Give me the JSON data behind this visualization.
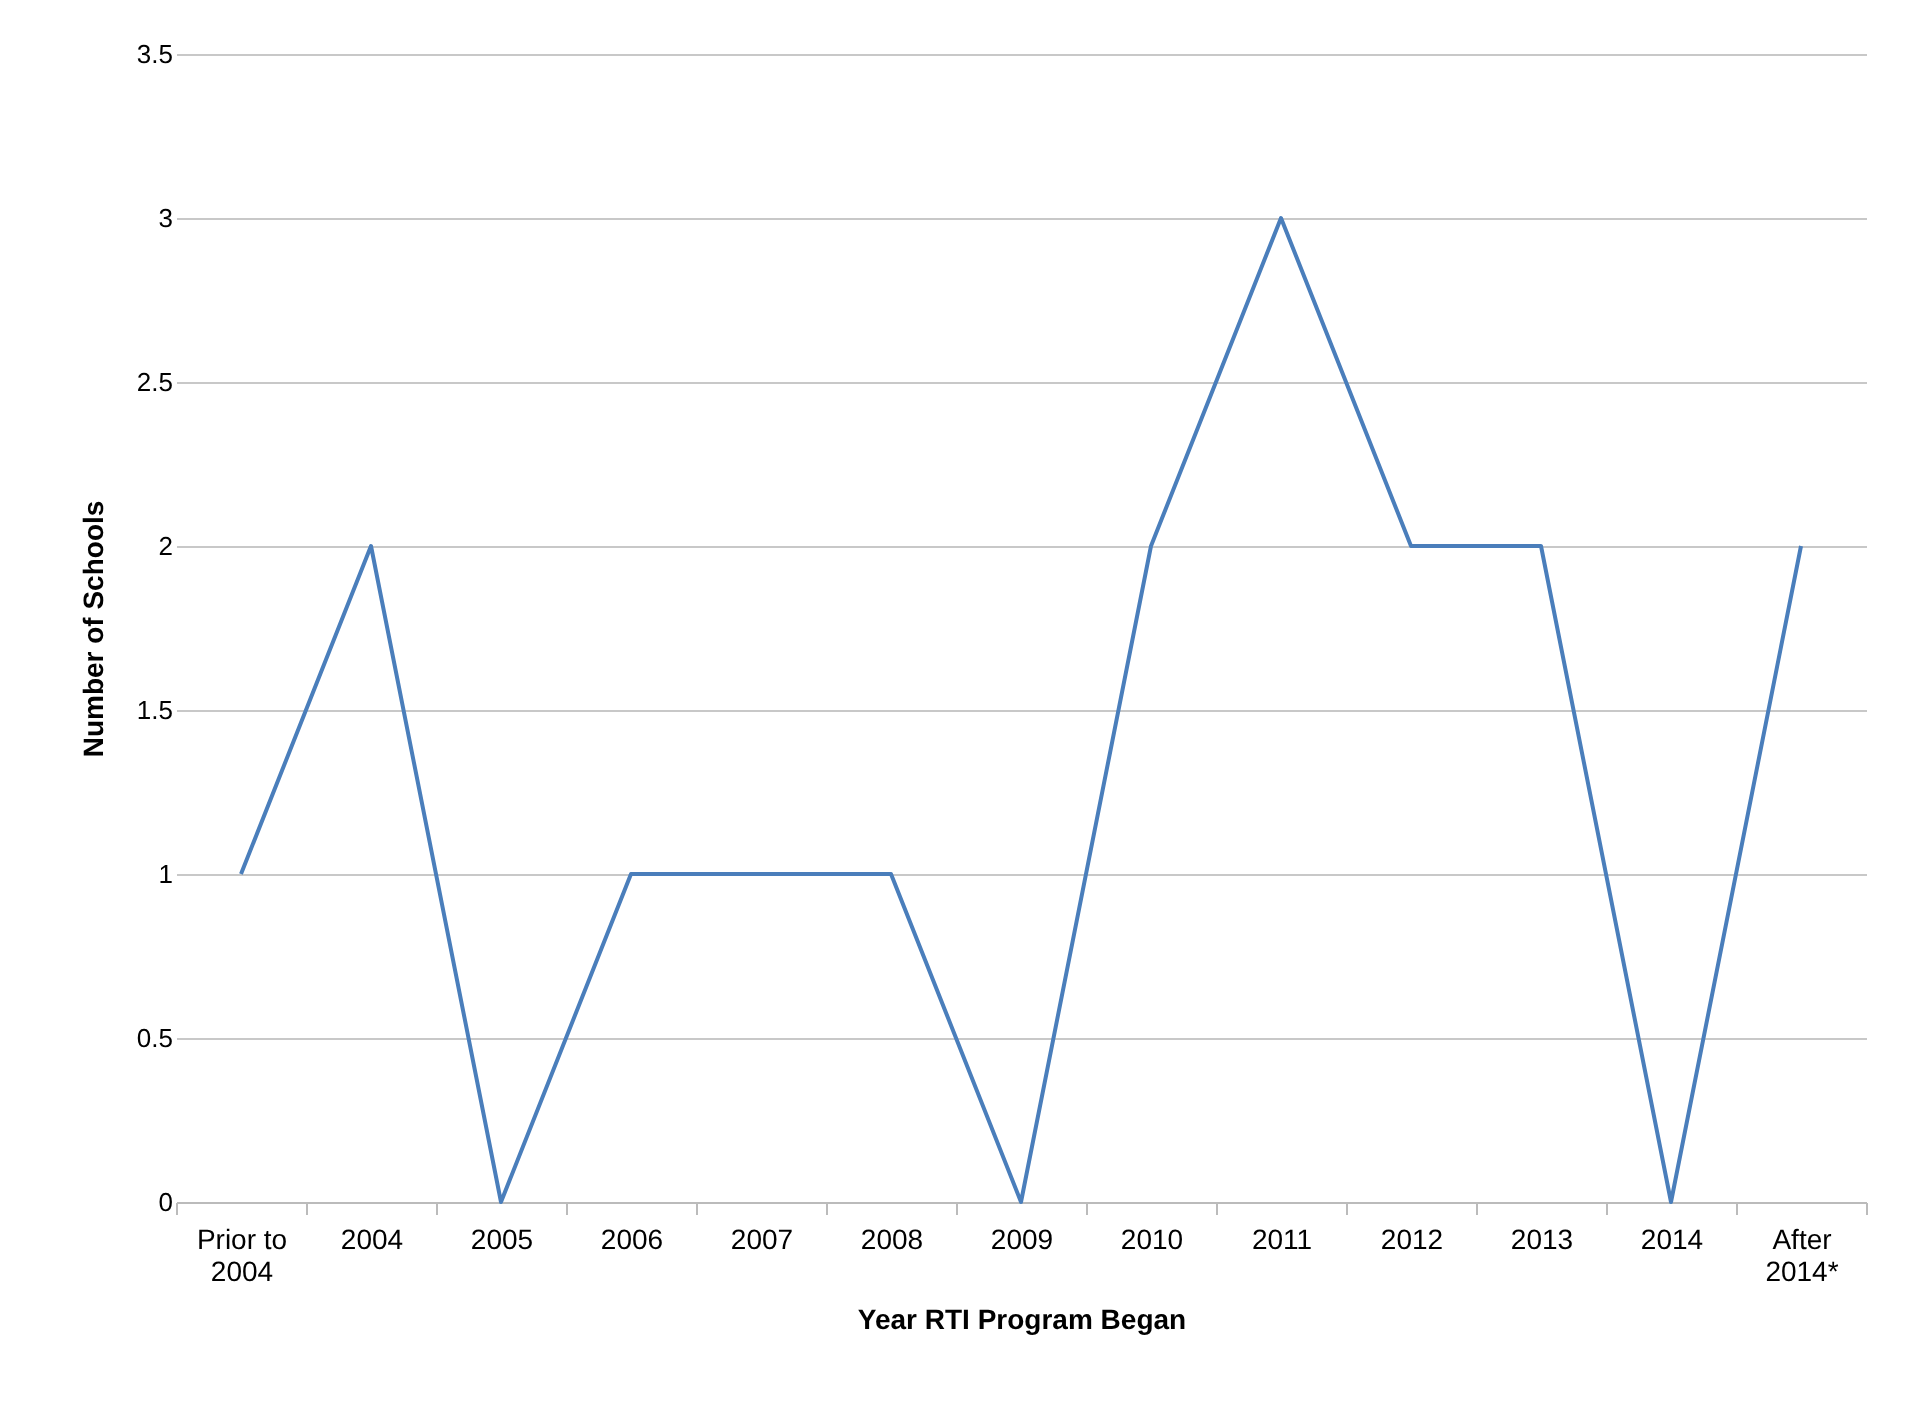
{
  "chart_data": {
    "type": "line",
    "xlabel": "Year RTI Program Began",
    "ylabel": "Number of Schools",
    "categories": [
      "Prior to 2004",
      "2004",
      "2005",
      "2006",
      "2007",
      "2008",
      "2009",
      "2010",
      "2011",
      "2012",
      "2013",
      "2014",
      "After 2014*"
    ],
    "series": [
      {
        "color": "#4a7ebb",
        "values": [
          1,
          2,
          0,
          1,
          1,
          1,
          0,
          2,
          3,
          2,
          2,
          0,
          2
        ]
      }
    ],
    "ylim": [
      0,
      3.5
    ],
    "yticks": [
      0,
      0.5,
      1,
      1.5,
      2,
      2.5,
      3,
      3.5
    ],
    "grid": "y",
    "legend": false,
    "marker": "none",
    "line_style": "solid"
  }
}
